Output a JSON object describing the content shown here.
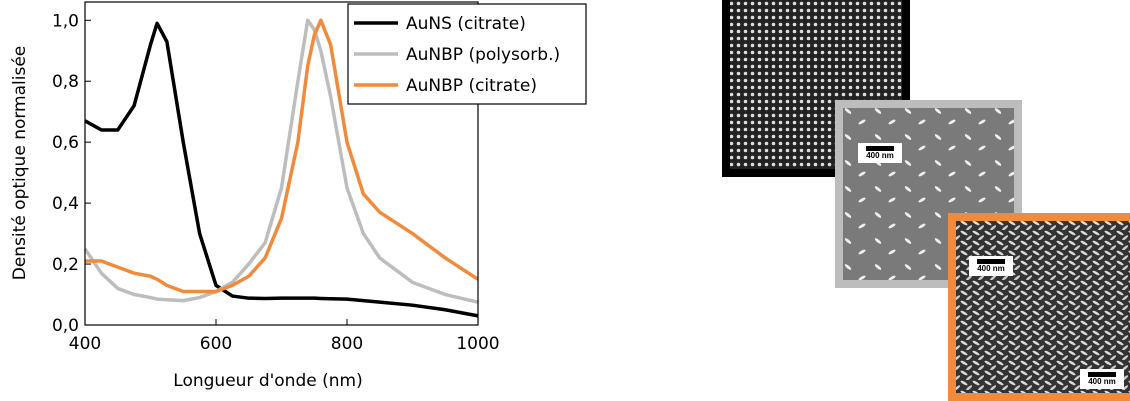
{
  "chart_data": {
    "type": "line",
    "x_label": "Longueur d'onde (nm)",
    "y_label": "Densité optique normalisée",
    "x": [
      400,
      425,
      450,
      475,
      500,
      510,
      525,
      550,
      575,
      600,
      625,
      650,
      675,
      700,
      725,
      740,
      750,
      760,
      775,
      800,
      825,
      850,
      900,
      950,
      1000
    ],
    "series": [
      {
        "name": "AuNS (citrate)",
        "color": "#000000",
        "values": [
          0.67,
          0.64,
          0.64,
          0.72,
          0.92,
          0.99,
          0.93,
          0.6,
          0.3,
          0.13,
          0.095,
          0.088,
          0.087,
          0.088,
          0.088,
          0.088,
          0.088,
          0.087,
          0.086,
          0.085,
          0.08,
          0.075,
          0.065,
          0.05,
          0.03
        ]
      },
      {
        "name": "AuNBP (polysorb.)",
        "color": "#bdbdbd",
        "values": [
          0.25,
          0.17,
          0.12,
          0.1,
          0.09,
          0.085,
          0.083,
          0.08,
          0.09,
          0.11,
          0.14,
          0.2,
          0.27,
          0.45,
          0.8,
          1.0,
          0.97,
          0.9,
          0.75,
          0.45,
          0.3,
          0.22,
          0.14,
          0.1,
          0.075
        ]
      },
      {
        "name": "AuNBP (citrate)",
        "color": "#f08a3c",
        "values": [
          0.21,
          0.21,
          0.19,
          0.17,
          0.16,
          0.15,
          0.13,
          0.11,
          0.11,
          0.11,
          0.13,
          0.16,
          0.22,
          0.35,
          0.6,
          0.85,
          0.95,
          1.0,
          0.92,
          0.6,
          0.43,
          0.37,
          0.3,
          0.22,
          0.15
        ]
      }
    ],
    "xlim": [
      400,
      1000
    ],
    "xticks": [
      400,
      600,
      800,
      1000
    ],
    "ylim": [
      0,
      1.06
    ],
    "yticks": [
      {
        "value": 0,
        "label": "0,0"
      },
      {
        "value": 0.2,
        "label": "0,2"
      },
      {
        "value": 0.4,
        "label": "0,4"
      },
      {
        "value": 0.6,
        "label": "0,6"
      },
      {
        "value": 0.8,
        "label": "0,8"
      },
      {
        "value": 1.0,
        "label": "1,0"
      }
    ],
    "legend": "upper right"
  },
  "images": [
    {
      "scale_bar": "400 nm"
    },
    {
      "scale_bar": "400 nm"
    },
    {
      "scale_bar": "400 nm"
    }
  ]
}
